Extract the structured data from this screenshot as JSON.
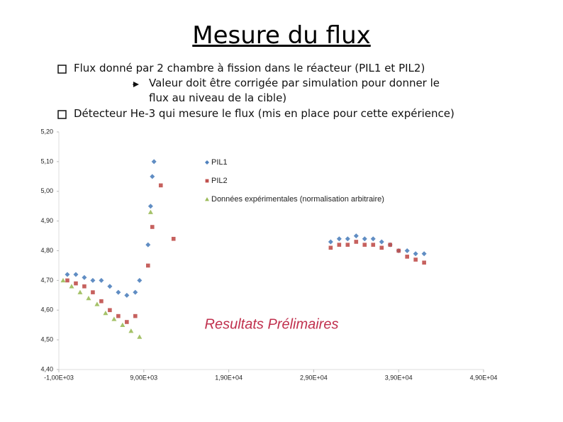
{
  "title": "Mesure du flux",
  "bullets": [
    {
      "level": 1,
      "text": "Flux donné par 2 chambre à fission dans le réacteur (PIL1 et PIL2)"
    },
    {
      "level": 2,
      "text": "Valeur doit être corrigée par simulation pour donner le flux au niveau de la cible)"
    },
    {
      "level": 1,
      "text": "Détecteur He-3 qui mesure le flux (mis en place pour cette expérience)"
    }
  ],
  "chart_data": {
    "type": "scatter",
    "annotation": "Resultats Prélimaires",
    "xlim": [
      -1000,
      49000
    ],
    "xticks": [
      {
        "value": -1000,
        "label": "-1,00E+03"
      },
      {
        "value": 9000,
        "label": "9,00E+03"
      },
      {
        "value": 19000,
        "label": "1,90E+04"
      },
      {
        "value": 29000,
        "label": "2,90E+04"
      },
      {
        "value": 39000,
        "label": "3,90E+04"
      },
      {
        "value": 49000,
        "label": "4,90E+04"
      }
    ],
    "ylim": [
      4.4,
      5.2
    ],
    "yticks": [
      {
        "value": 4.4,
        "label": "4,40"
      },
      {
        "value": 4.5,
        "label": "4,50"
      },
      {
        "value": 4.6,
        "label": "4,60"
      },
      {
        "value": 4.7,
        "label": "4,70"
      },
      {
        "value": 4.8,
        "label": "4,80"
      },
      {
        "value": 4.9,
        "label": "4,90"
      },
      {
        "value": 5.0,
        "label": "5,00"
      },
      {
        "value": 5.1,
        "label": "5,10"
      },
      {
        "value": 5.2,
        "label": "5,20"
      }
    ],
    "series": [
      {
        "name": "PIL1",
        "color": "#4f81bd",
        "marker": "diamond",
        "x": [
          0,
          1000,
          2000,
          3000,
          4000,
          5000,
          6000,
          7000,
          8000,
          8500,
          9500,
          9800,
          10000,
          10200,
          31000,
          32000,
          33000,
          34000,
          35000,
          36000,
          37000,
          38000,
          39000,
          40000,
          41000,
          42000
        ],
        "values": [
          4.72,
          4.72,
          4.71,
          4.7,
          4.7,
          4.68,
          4.66,
          4.65,
          4.66,
          4.7,
          4.82,
          4.95,
          5.05,
          5.1,
          4.83,
          4.84,
          4.84,
          4.85,
          4.84,
          4.84,
          4.83,
          4.82,
          4.8,
          4.8,
          4.79,
          4.79
        ]
      },
      {
        "name": "PIL2",
        "color": "#c0504d",
        "marker": "square",
        "x": [
          0,
          1000,
          2000,
          3000,
          4000,
          5000,
          6000,
          7000,
          8000,
          9500,
          10000,
          11000,
          12500,
          31000,
          32000,
          33000,
          34000,
          35000,
          36000,
          37000,
          38000,
          39000,
          40000,
          41000,
          42000
        ],
        "values": [
          4.7,
          4.69,
          4.68,
          4.66,
          4.63,
          4.6,
          4.58,
          4.56,
          4.58,
          4.75,
          4.88,
          5.02,
          4.84,
          4.81,
          4.82,
          4.82,
          4.83,
          4.82,
          4.82,
          4.81,
          4.82,
          4.8,
          4.78,
          4.77,
          4.76
        ]
      },
      {
        "name": "Données expérimentales (normalisation arbitraire)",
        "color": "#9bbb59",
        "marker": "triangle",
        "x": [
          -500,
          500,
          1500,
          2500,
          3500,
          4500,
          5500,
          6500,
          7500,
          8500,
          9800
        ],
        "values": [
          4.7,
          4.68,
          4.66,
          4.64,
          4.62,
          4.59,
          4.57,
          4.55,
          4.53,
          4.51,
          4.93
        ]
      }
    ]
  }
}
